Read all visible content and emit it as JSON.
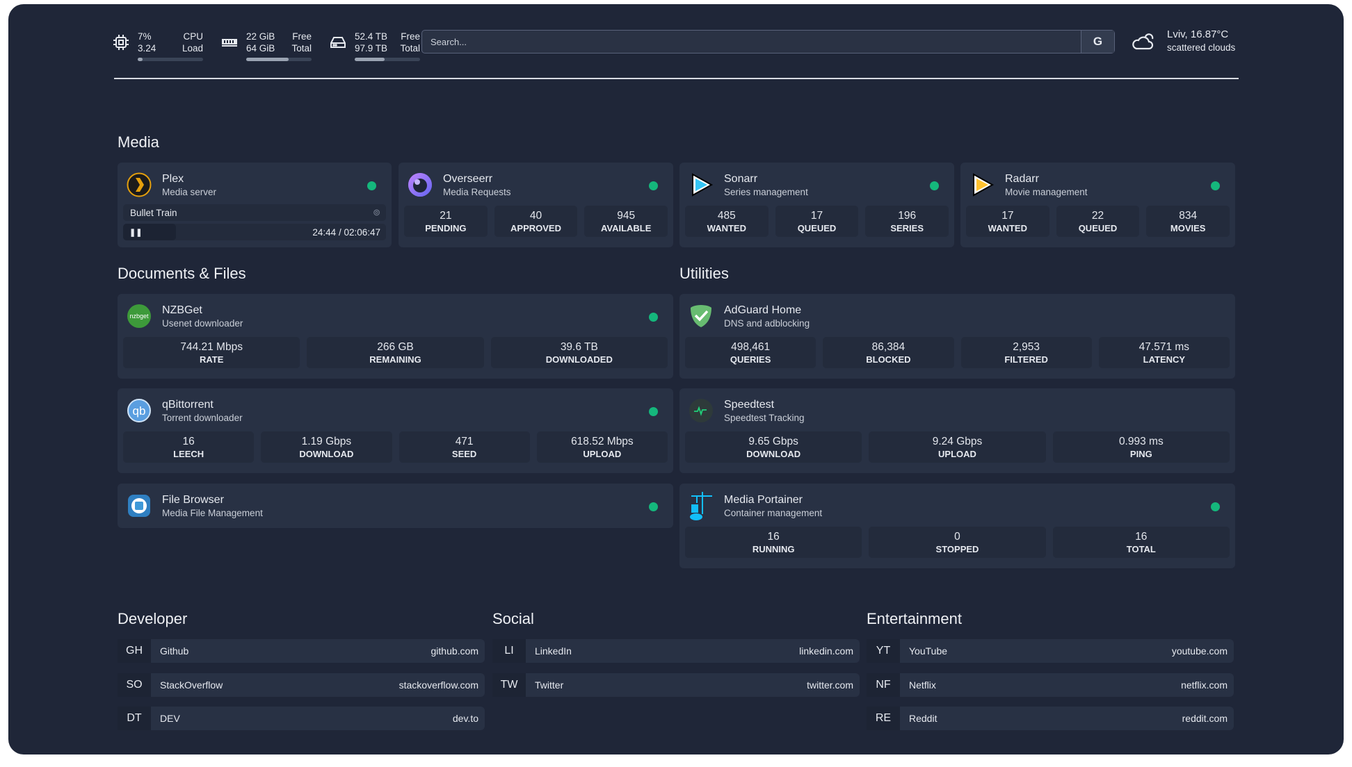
{
  "top": {
    "cpu": {
      "icon": "cpu-icon",
      "v1": "7%",
      "v2": "3.24",
      "l1": "CPU",
      "l2": "Load",
      "fill_percent": 7
    },
    "ram": {
      "icon": "memory-icon",
      "v1": "22 GiB",
      "v2": "64 GiB",
      "l1": "Free",
      "l2": "Total",
      "fill_percent": 65
    },
    "disk": {
      "icon": "hard-drive-icon",
      "v1": "52.4 TB",
      "v2": "97.9 TB",
      "l1": "Free",
      "l2": "Total",
      "fill_percent": 46
    },
    "search": {
      "placeholder": "Search...",
      "button": "G"
    },
    "weather": {
      "icon": "cloud-icon",
      "location": "Lviv, 16.87°C",
      "condition": "scattered clouds"
    }
  },
  "sections": {
    "media": "Media",
    "docs": "Documents & Files",
    "utilities": "Utilities",
    "developer": "Developer",
    "social": "Social",
    "entertainment": "Entertainment"
  },
  "plex": {
    "name": "Plex",
    "desc": "Media server",
    "icon": "plex-icon",
    "now_playing": "Bullet Train",
    "progress": "24:44 / 02:06:47",
    "status": "online"
  },
  "media": [
    {
      "name": "Overseerr",
      "desc": "Media Requests",
      "icon": "overseerr-icon",
      "stats": [
        {
          "v": "21",
          "l": "PENDING"
        },
        {
          "v": "40",
          "l": "APPROVED"
        },
        {
          "v": "945",
          "l": "AVAILABLE"
        }
      ]
    },
    {
      "name": "Sonarr",
      "desc": "Series management",
      "icon": "sonarr-icon",
      "stats": [
        {
          "v": "485",
          "l": "WANTED"
        },
        {
          "v": "17",
          "l": "QUEUED"
        },
        {
          "v": "196",
          "l": "SERIES"
        }
      ]
    },
    {
      "name": "Radarr",
      "desc": "Movie management",
      "icon": "radarr-icon",
      "stats": [
        {
          "v": "17",
          "l": "WANTED"
        },
        {
          "v": "22",
          "l": "QUEUED"
        },
        {
          "v": "834",
          "l": "MOVIES"
        }
      ]
    }
  ],
  "docs": [
    {
      "name": "NZBGet",
      "desc": "Usenet downloader",
      "icon": "nzbget-icon",
      "stats": [
        {
          "v": "744.21 Mbps",
          "l": "RATE"
        },
        {
          "v": "266 GB",
          "l": "REMAINING"
        },
        {
          "v": "39.6 TB",
          "l": "DOWNLOADED"
        }
      ]
    },
    {
      "name": "qBittorrent",
      "desc": "Torrent downloader",
      "icon": "qbittorrent-icon",
      "stats": [
        {
          "v": "16",
          "l": "LEECH"
        },
        {
          "v": "1.19 Gbps",
          "l": "DOWNLOAD"
        },
        {
          "v": "471",
          "l": "SEED"
        },
        {
          "v": "618.52 Mbps",
          "l": "UPLOAD"
        }
      ]
    },
    {
      "name": "File Browser",
      "desc": "Media File Management",
      "icon": "file-browser-icon",
      "stats": []
    }
  ],
  "utilities": [
    {
      "name": "AdGuard Home",
      "desc": "DNS and adblocking",
      "icon": "adguard-icon",
      "dot": false,
      "stats": [
        {
          "v": "498,461",
          "l": "QUERIES"
        },
        {
          "v": "86,384",
          "l": "BLOCKED"
        },
        {
          "v": "2,953",
          "l": "FILTERED"
        },
        {
          "v": "47.571 ms",
          "l": "LATENCY"
        }
      ]
    },
    {
      "name": "Speedtest",
      "desc": "Speedtest Tracking",
      "icon": "speedtest-icon",
      "dot": false,
      "stats": [
        {
          "v": "9.65 Gbps",
          "l": "DOWNLOAD"
        },
        {
          "v": "9.24 Gbps",
          "l": "UPLOAD"
        },
        {
          "v": "0.993 ms",
          "l": "PING"
        }
      ]
    },
    {
      "name": "Media Portainer",
      "desc": "Container management",
      "icon": "portainer-icon",
      "dot": true,
      "stats": [
        {
          "v": "16",
          "l": "RUNNING"
        },
        {
          "v": "0",
          "l": "STOPPED"
        },
        {
          "v": "16",
          "l": "TOTAL"
        }
      ]
    }
  ],
  "bookmarks": {
    "developer": [
      {
        "abbr": "GH",
        "name": "Github",
        "url": "github.com"
      },
      {
        "abbr": "SO",
        "name": "StackOverflow",
        "url": "stackoverflow.com"
      },
      {
        "abbr": "DT",
        "name": "DEV",
        "url": "dev.to"
      }
    ],
    "social": [
      {
        "abbr": "LI",
        "name": "LinkedIn",
        "url": "linkedin.com"
      },
      {
        "abbr": "TW",
        "name": "Twitter",
        "url": "twitter.com"
      }
    ],
    "entertainment": [
      {
        "abbr": "YT",
        "name": "YouTube",
        "url": "youtube.com"
      },
      {
        "abbr": "NF",
        "name": "Netflix",
        "url": "netflix.com"
      },
      {
        "abbr": "RE",
        "name": "Reddit",
        "url": "reddit.com"
      }
    ]
  },
  "colors": {
    "status_online": "#15b77c",
    "background": "#1f2638",
    "card": "#283144"
  }
}
